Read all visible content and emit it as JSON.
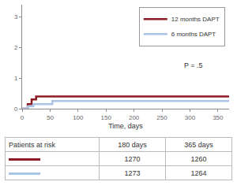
{
  "chart_data": {
    "type": "line",
    "xlabel": "Time, days",
    "series": [
      {
        "name": "12 months DAPT",
        "color": "#8c1c22",
        "line_style": "step",
        "x": [
          0,
          10,
          17,
          25,
          370
        ],
        "values": [
          0,
          0.15,
          0.3,
          0.4,
          0.4
        ]
      },
      {
        "name": "6 months DAPT",
        "color": "#a9c5e6",
        "line_style": "step",
        "x": [
          0,
          10,
          20,
          54,
          370
        ],
        "values": [
          0,
          0.08,
          0.15,
          0.25,
          0.25
        ]
      }
    ],
    "xlim": [
      0,
      370
    ],
    "xticks": [
      0,
      50,
      100,
      150,
      200,
      250,
      300,
      350
    ],
    "ylim": [
      0,
      3.4
    ],
    "yticks": [
      0,
      1,
      2,
      3
    ],
    "grid": false,
    "legend": "upper right",
    "annotations": [
      "P = .5"
    ]
  },
  "table": {
    "header": [
      "Patients at risk",
      "180 days",
      "365 days"
    ],
    "rows": [
      {
        "color": "#8c1c22",
        "values": [
          1270,
          1260
        ]
      },
      {
        "color": "#a9c5e6",
        "values": [
          1273,
          1264
        ]
      }
    ]
  }
}
